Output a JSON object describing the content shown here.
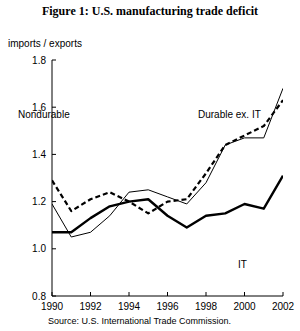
{
  "chart_data": {
    "type": "line",
    "title": "Figure 1:  U.S. manufacturing trade deficit",
    "y_label": "imports / exports",
    "source": "Source:  U.S. International Trade Commission.",
    "x": [
      1990,
      1991,
      1992,
      1993,
      1994,
      1995,
      1996,
      1997,
      1998,
      1999,
      2000,
      2001,
      2002
    ],
    "xlim": [
      1990,
      2002
    ],
    "xticks": [
      1990,
      1992,
      1994,
      1996,
      1998,
      2000,
      2002
    ],
    "ylim": [
      0.8,
      1.8
    ],
    "yticks": [
      0.8,
      {
        "value": 1,
        "label": "1.0"
      },
      1.2,
      1.4,
      1.6,
      1.8
    ],
    "grid": false,
    "series": [
      {
        "name": "Nondurable",
        "color": "#000000",
        "line_style": "dashed",
        "values": [
          1.29,
          1.16,
          1.21,
          1.24,
          1.2,
          1.15,
          1.2,
          1.21,
          1.32,
          1.44,
          1.48,
          1.52,
          1.63
        ]
      },
      {
        "name": "Durable ex. IT",
        "color": "#000000",
        "line_style": "solid",
        "values": [
          1.19,
          1.05,
          1.07,
          1.14,
          1.24,
          1.25,
          1.22,
          1.19,
          1.28,
          1.44,
          1.47,
          1.47,
          1.68
        ]
      },
      {
        "name": "IT",
        "color": "#000000",
        "line_style": "thick",
        "values": [
          1.07,
          1.07,
          1.13,
          1.18,
          1.2,
          1.21,
          1.14,
          1.09,
          1.14,
          1.15,
          1.19,
          1.17,
          1.31
        ]
      }
    ]
  }
}
